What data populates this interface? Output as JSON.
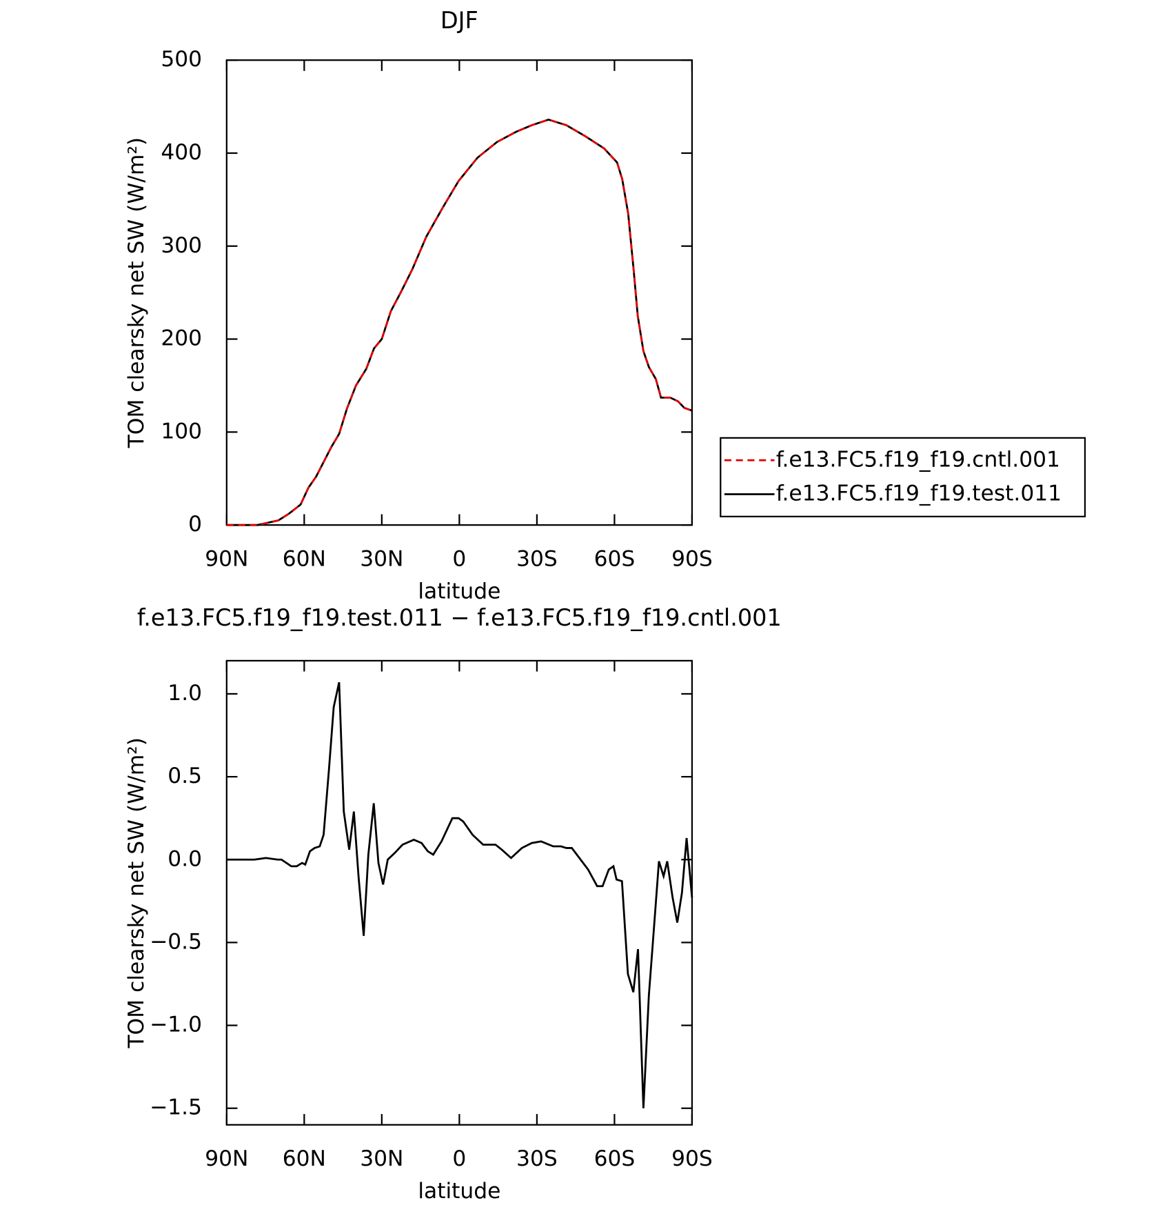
{
  "chart_data": [
    {
      "type": "line",
      "title": "DJF",
      "xlabel": "latitude",
      "ylabel": "TOM clearsky net SW (W/m²)",
      "xlim": [
        90,
        -90
      ],
      "ylim": [
        0,
        500
      ],
      "xticks": [
        {
          "value": 90,
          "label": "90N"
        },
        {
          "value": 60,
          "label": "60N"
        },
        {
          "value": 30,
          "label": "30N"
        },
        0,
        {
          "value": -30,
          "label": "30S"
        },
        {
          "value": -60,
          "label": "60S"
        },
        {
          "value": -90,
          "label": "90S"
        }
      ],
      "yticks": [
        0,
        100,
        200,
        300,
        400,
        500
      ],
      "legend": "outside right",
      "x": [
        90,
        78,
        70,
        66,
        61.4,
        58.4,
        55.4,
        49.5,
        46.5,
        43.5,
        40,
        36,
        33,
        30,
        26.5,
        22.7,
        18.2,
        12.8,
        6.3,
        0.3,
        -7,
        -14.6,
        -22,
        -28,
        -34.5,
        -41.4,
        -48.8,
        -56,
        -61,
        -63,
        -65.3,
        -67.4,
        -69,
        -71.2,
        -73.3,
        -76,
        -78,
        -81.6,
        -84.6,
        -87,
        -90
      ],
      "series": [
        {
          "name": "f.e13.FC5.f19_f19.cntl.001",
          "color": "#e00000",
          "dash": "dashed",
          "values": [
            0,
            0,
            5,
            12,
            22,
            40,
            52,
            84,
            98,
            125,
            150,
            168,
            190,
            200,
            230,
            250,
            275,
            310,
            342,
            370,
            395,
            412,
            423,
            430,
            436,
            430,
            418,
            405,
            390,
            372,
            335,
            275,
            225,
            187,
            170,
            157,
            137,
            137,
            133,
            126,
            123
          ]
        },
        {
          "name": "f.e13.FC5.f19_f19.test.011",
          "color": "#000000",
          "dash": "solid",
          "values": [
            0,
            0,
            5,
            12,
            22,
            40,
            52,
            84,
            98,
            125,
            150,
            168,
            190,
            200,
            230,
            250,
            275,
            310,
            342,
            370,
            395,
            412,
            423,
            430,
            436,
            430,
            418,
            405,
            390,
            372,
            335,
            275,
            225,
            187,
            170,
            157,
            137,
            137,
            133,
            126,
            123
          ]
        }
      ]
    },
    {
      "type": "line",
      "title": "f.e13.FC5.f19_f19.test.011 − f.e13.FC5.f19_f19.cntl.001",
      "xlabel": "latitude",
      "ylabel": "TOM clearsky net SW (W/m²)",
      "xlim": [
        90,
        -90
      ],
      "ylim": [
        -1.6,
        1.2
      ],
      "xticks": [
        {
          "value": 90,
          "label": "90N"
        },
        {
          "value": 60,
          "label": "60N"
        },
        {
          "value": 30,
          "label": "30N"
        },
        0,
        {
          "value": -30,
          "label": "30S"
        },
        {
          "value": -60,
          "label": "60S"
        },
        {
          "value": -90,
          "label": "90S"
        }
      ],
      "yticks": [
        {
          "value": -1.5,
          "label": "−1.5"
        },
        {
          "value": -1,
          "label": "−1.0"
        },
        {
          "value": -0.5,
          "label": "−0.5"
        },
        {
          "value": 0,
          "label": "0.0"
        },
        0.5,
        {
          "value": 1,
          "label": "1.0"
        }
      ],
      "x": [
        90,
        79.3,
        74.8,
        70.3,
        68.8,
        65,
        62.9,
        60.8,
        59.6,
        57.8,
        56,
        54,
        52.5,
        50.4,
        48.6,
        46.5,
        44.7,
        42.6,
        40.8,
        39,
        37,
        35.2,
        33.1,
        31.3,
        29.5,
        27.7,
        25,
        22,
        17.6,
        14.6,
        12.2,
        10.1,
        6.9,
        2.7,
        0.3,
        -1.5,
        -5.1,
        -9.2,
        -14,
        -16.4,
        -20,
        -24.2,
        -28,
        -31.6,
        -36.3,
        -39.3,
        -41.4,
        -43.5,
        -49.8,
        -53.3,
        -55.4,
        -57.8,
        -59.6,
        -60.8,
        -62.9,
        -65.2,
        -67.3,
        -69.1,
        -71.2,
        -73.3,
        -75,
        -77.2,
        -79,
        -80.4,
        -82.5,
        -84.3,
        -86.1,
        -87.9,
        -90
      ],
      "series": [
        {
          "color": "#000000",
          "dash": "solid",
          "values": [
            0,
            0,
            0.01,
            0,
            0,
            -0.04,
            -0.04,
            -0.02,
            -0.03,
            0.05,
            0.07,
            0.08,
            0.15,
            0.55,
            0.92,
            1.07,
            0.29,
            0.06,
            0.29,
            -0.1,
            -0.46,
            0.03,
            0.34,
            -0.02,
            -0.15,
            0,
            0.04,
            0.09,
            0.12,
            0.1,
            0.05,
            0.03,
            0.11,
            0.25,
            0.25,
            0.23,
            0.15,
            0.09,
            0.09,
            0.06,
            0.01,
            0.07,
            0.1,
            0.11,
            0.08,
            0.08,
            0.07,
            0.07,
            -0.06,
            -0.16,
            -0.16,
            -0.06,
            -0.04,
            -0.12,
            -0.13,
            -0.69,
            -0.8,
            -0.54,
            -1.5,
            -0.82,
            -0.47,
            -0.01,
            -0.1,
            -0.01,
            -0.23,
            -0.38,
            -0.2,
            0.13,
            -0.23
          ]
        }
      ]
    }
  ]
}
